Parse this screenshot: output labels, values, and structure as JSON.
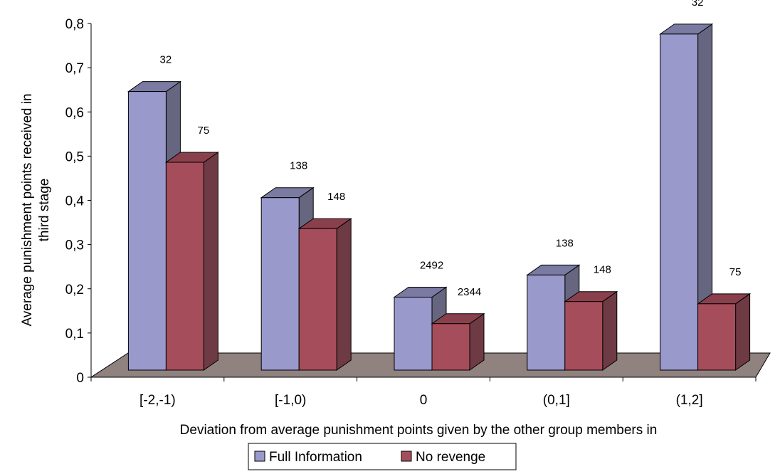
{
  "chart_data": {
    "type": "bar",
    "style": "3d-clustered-column",
    "title": "",
    "xlabel": "Deviation from average punishment points given by the other group members in",
    "ylabel_lines": [
      "Average punishment points received in",
      "third stage"
    ],
    "ylim": [
      0,
      0.8
    ],
    "yticks": [
      "0",
      "0,1",
      "0,2",
      "0,3",
      "0,4",
      "0,5",
      "0,6",
      "0,7",
      "0,8"
    ],
    "grid": false,
    "legend_position": "bottom",
    "categories": [
      "[-2,-1)",
      "[-1,0)",
      "0",
      "(0,1]",
      "(1,2]"
    ],
    "series": [
      {
        "name": "Full Information",
        "color": "#9999cc",
        "side_color": "#666680",
        "top_color": "#7a7aa3",
        "values": [
          0.63,
          0.39,
          0.165,
          0.215,
          0.76
        ],
        "labels": [
          "32",
          "138",
          "2492",
          "138",
          "32"
        ]
      },
      {
        "name": "No revenge",
        "color": "#a64d5c",
        "side_color": "#6e3a43",
        "top_color": "#8a3f4c",
        "values": [
          0.47,
          0.32,
          0.105,
          0.155,
          0.15
        ],
        "labels": [
          "75",
          "148",
          "2344",
          "148",
          "75"
        ]
      }
    ],
    "floor_color": "#8f827f"
  }
}
